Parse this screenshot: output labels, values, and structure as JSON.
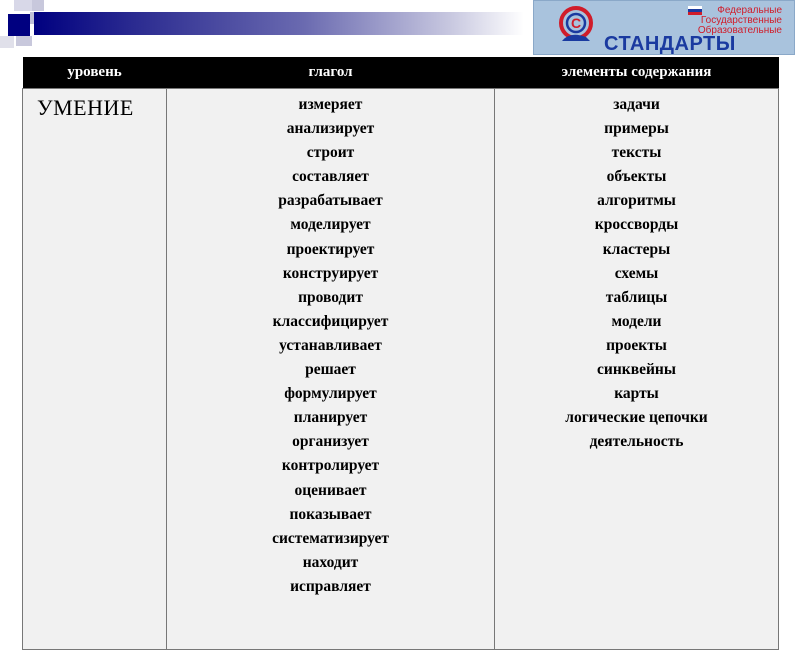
{
  "logo": {
    "lines": [
      "Федеральные",
      "Государственные",
      "Образовательные"
    ],
    "brand": "СТАНДАРТЫ"
  },
  "table": {
    "headers": [
      "уровень",
      "глагол",
      "элементы содержания"
    ],
    "level": "УМЕНИЕ",
    "verbs": [
      "измеряет",
      "анализирует",
      "строит",
      "составляет",
      "разрабатывает",
      "моделирует",
      "проектирует",
      "конструирует",
      "проводит",
      "классифицирует",
      "устанавливает",
      "решает",
      "формулирует",
      "планирует",
      "организует",
      "контролирует",
      "оценивает",
      "показывает",
      "систематизирует",
      "находит",
      "исправляет"
    ],
    "content": [
      "задачи",
      "примеры",
      "тексты",
      "объекты",
      "алгоритмы",
      "кроссворды",
      "кластеры",
      "схемы",
      "таблицы",
      "модели",
      "проекты",
      "синквейны",
      "карты",
      "логические цепочки",
      "деятельность"
    ]
  },
  "colors": {
    "header_bg": "#000000",
    "cell_bg": "#f1f1f1",
    "accent": "#000080",
    "logo_bg": "#a9c3dd"
  }
}
